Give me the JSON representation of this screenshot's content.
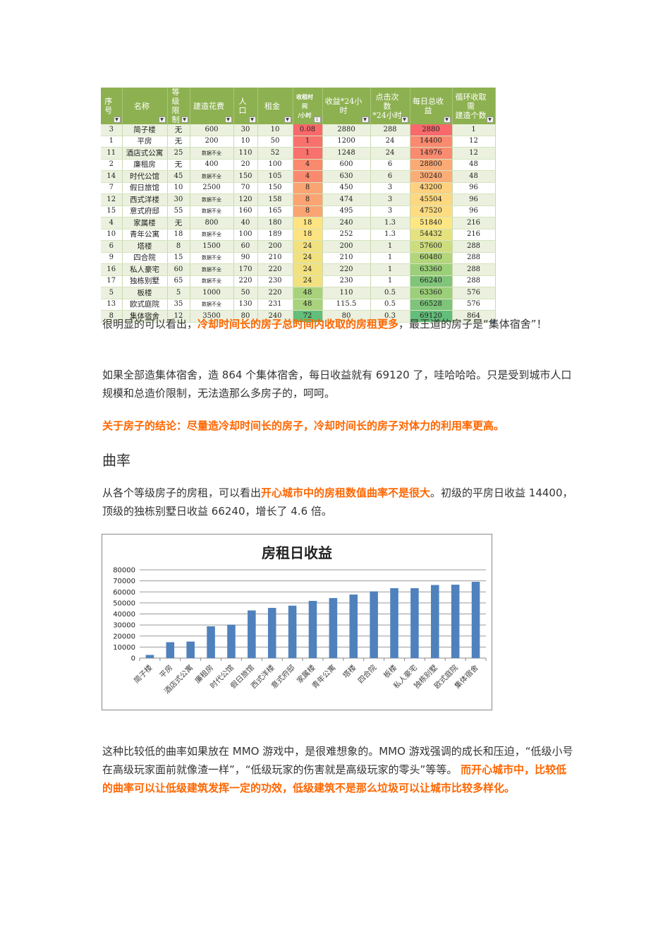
{
  "table": {
    "headers": [
      {
        "line1": "序号",
        "line2": ""
      },
      {
        "line1": "名称",
        "line2": ""
      },
      {
        "line1": "等级",
        "line2": "限制"
      },
      {
        "line1": "建造花费",
        "line2": ""
      },
      {
        "line1": "人口",
        "line2": ""
      },
      {
        "line1": "租金",
        "line2": ""
      },
      {
        "line1": "收租时间",
        "line2": "/小时"
      },
      {
        "line1": "收益*24小",
        "line2": "时"
      },
      {
        "line1": "点击次数",
        "line2": "*24小时"
      },
      {
        "line1": "每日总收",
        "line2": "益"
      },
      {
        "line1": "循环收取需",
        "line2": "建造个数"
      }
    ],
    "rows": [
      {
        "id": "3",
        "name": "简子楼",
        "level": "无",
        "cost": "600",
        "pop": "30",
        "rent": "10",
        "time": "0.08",
        "income24": "2880",
        "clicks": "288",
        "daily": "2880",
        "count": "1",
        "time_color": "#f8696b",
        "daily_color": "#f8696b"
      },
      {
        "id": "1",
        "name": "平房",
        "level": "无",
        "cost": "200",
        "pop": "10",
        "rent": "50",
        "time": "1",
        "income24": "1200",
        "clicks": "24",
        "daily": "14400",
        "count": "12",
        "time_color": "#f8716c",
        "daily_color": "#f98a6f"
      },
      {
        "id": "11",
        "name": "酒店式公寓",
        "level": "25",
        "cost": "数据不全",
        "pop": "110",
        "rent": "52",
        "time": "1",
        "income24": "1248",
        "clicks": "24",
        "daily": "14976",
        "count": "12",
        "time_color": "#f8716c",
        "daily_color": "#f98b70"
      },
      {
        "id": "2",
        "name": "廉租房",
        "level": "无",
        "cost": "400",
        "pop": "20",
        "rent": "100",
        "time": "4",
        "income24": "600",
        "clicks": "6",
        "daily": "28800",
        "count": "48",
        "time_color": "#f98a6f",
        "daily_color": "#fbaa76"
      },
      {
        "id": "14",
        "name": "时代公馆",
        "level": "45",
        "cost": "数据不全",
        "pop": "150",
        "rent": "105",
        "time": "4",
        "income24": "630",
        "clicks": "6",
        "daily": "30240",
        "count": "48",
        "time_color": "#f98a6f",
        "daily_color": "#fbad77"
      },
      {
        "id": "7",
        "name": "假日旅馆",
        "level": "10",
        "cost": "2500",
        "pop": "70",
        "rent": "150",
        "time": "8",
        "income24": "450",
        "clicks": "3",
        "daily": "43200",
        "count": "96",
        "time_color": "#faa474",
        "daily_color": "#fdd17f"
      },
      {
        "id": "12",
        "name": "西式洋楼",
        "level": "30",
        "cost": "数据不全",
        "pop": "120",
        "rent": "158",
        "time": "8",
        "income24": "474",
        "clicks": "3",
        "daily": "45504",
        "count": "96",
        "time_color": "#faa474",
        "daily_color": "#fed880"
      },
      {
        "id": "15",
        "name": "意式府邸",
        "level": "55",
        "cost": "数据不全",
        "pop": "160",
        "rent": "165",
        "time": "8",
        "income24": "495",
        "clicks": "3",
        "daily": "47520",
        "count": "96",
        "time_color": "#faa474",
        "daily_color": "#fedc81"
      },
      {
        "id": "4",
        "name": "家属楼",
        "level": "无",
        "cost": "800",
        "pop": "40",
        "rent": "180",
        "time": "18",
        "income24": "240",
        "clicks": "1.3",
        "daily": "51840",
        "count": "216",
        "time_color": "#fde382",
        "daily_color": "#fee683"
      },
      {
        "id": "10",
        "name": "青年公寓",
        "level": "18",
        "cost": "数据不全",
        "pop": "100",
        "rent": "189",
        "time": "18",
        "income24": "252",
        "clicks": "1.3",
        "daily": "54432",
        "count": "216",
        "time_color": "#fde382",
        "daily_color": "#e6e17f"
      },
      {
        "id": "6",
        "name": "塔楼",
        "level": "8",
        "cost": "1500",
        "pop": "60",
        "rent": "200",
        "time": "24",
        "income24": "200",
        "clicks": "1",
        "daily": "57600",
        "count": "288",
        "time_color": "#f2e180",
        "daily_color": "#cddd7e"
      },
      {
        "id": "9",
        "name": "四合院",
        "level": "15",
        "cost": "数据不全",
        "pop": "90",
        "rent": "210",
        "time": "24",
        "income24": "210",
        "clicks": "1",
        "daily": "60480",
        "count": "288",
        "time_color": "#f2e180",
        "daily_color": "#b3d57b"
      },
      {
        "id": "16",
        "name": "私人豪宅",
        "level": "60",
        "cost": "数据不全",
        "pop": "170",
        "rent": "220",
        "time": "24",
        "income24": "220",
        "clicks": "1",
        "daily": "63360",
        "count": "288",
        "time_color": "#f2e180",
        "daily_color": "#9ccf79"
      },
      {
        "id": "17",
        "name": "独栋别墅",
        "level": "65",
        "cost": "数据不全",
        "pop": "220",
        "rent": "230",
        "time": "24",
        "income24": "230",
        "clicks": "1",
        "daily": "66240",
        "count": "288",
        "time_color": "#f2e180",
        "daily_color": "#80c57a"
      },
      {
        "id": "5",
        "name": "板楼",
        "level": "5",
        "cost": "1000",
        "pop": "50",
        "rent": "220",
        "time": "48",
        "income24": "110",
        "clicks": "0.5",
        "daily": "63360",
        "count": "576",
        "time_color": "#a8d27c",
        "daily_color": "#9ccf79"
      },
      {
        "id": "13",
        "name": "欧式庭院",
        "level": "35",
        "cost": "数据不全",
        "pop": "130",
        "rent": "231",
        "time": "48",
        "income24": "115.5",
        "clicks": "0.5",
        "daily": "66528",
        "count": "576",
        "time_color": "#a8d27c",
        "daily_color": "#7ec47a"
      },
      {
        "id": "8",
        "name": "集体宿舍",
        "level": "12",
        "cost": "3500",
        "pop": "80",
        "rent": "240",
        "time": "72",
        "income24": "80",
        "clicks": "0.3",
        "daily": "69120",
        "count": "864",
        "time_color": "#63be7b",
        "daily_color": "#63be7b"
      }
    ]
  },
  "paragraphs": {
    "p1": {
      "a": "很明显的可以看出，",
      "b": "冷却时间长的房子总时间内收取的房租更多",
      "c": "，最王道的房子是“集体宿舍”！"
    },
    "p2": {
      "text": "如果全部造集体宿舍，造 864 个集体宿舍，每日收益就有 69120 了，哇哈哈哈。只是受到城市人口规模和总造价限制，无法造那么多房子的，呵呵。"
    },
    "p3": {
      "text": "关于房子的结论：尽量造冷却时间长的房子，冷却时间长的房子对体力的利用率更高。"
    },
    "heading": "曲率",
    "p4": {
      "a": "从各个等级房子的房租，可以看出",
      "b": "开心城市中的房租数值曲率不是很大",
      "c": "。初级的平房日收益 14400，顶级的独栋别墅日收益 66240，增长了 4.6 倍。"
    },
    "p5": {
      "text": "这种比较低的曲率如果放在 MMO 游戏中，是很难想象的。MMO 游戏强调的成长和压迫，“低级小号在高级玩家面前就像渣一样”，“低级玩家的伤害就是高级玩家的零头”等等。"
    },
    "p6": {
      "text": "而开心城市中，比较低的曲率可以让低级建筑发挥一定的功效，低级建筑不是那么垃圾可以让城市比较多样化。"
    }
  },
  "colors": {
    "header_bg": "#8db150",
    "accent_orange": "#ff6600",
    "bar_color": "#4f81bd"
  },
  "chart_data": {
    "type": "bar",
    "title": "房租日收益",
    "xlabel": "",
    "ylabel": "",
    "ylim": [
      0,
      80000
    ],
    "yticks": [
      0,
      10000,
      20000,
      30000,
      40000,
      50000,
      60000,
      70000,
      80000
    ],
    "grid": true,
    "legend": "none",
    "categories": [
      "简子楼",
      "平房",
      "酒店式公寓",
      "廉租房",
      "时代公馆",
      "假日旅馆",
      "西式洋楼",
      "意式府邸",
      "家属楼",
      "青年公寓",
      "塔楼",
      "四合院",
      "板楼",
      "私人豪宅",
      "独栋别墅",
      "欧式庭院",
      "集体宿舍"
    ],
    "values": [
      2880,
      14400,
      14976,
      28800,
      30240,
      43200,
      45504,
      47520,
      51840,
      54432,
      57600,
      60480,
      63360,
      63360,
      66240,
      66528,
      69120
    ]
  }
}
